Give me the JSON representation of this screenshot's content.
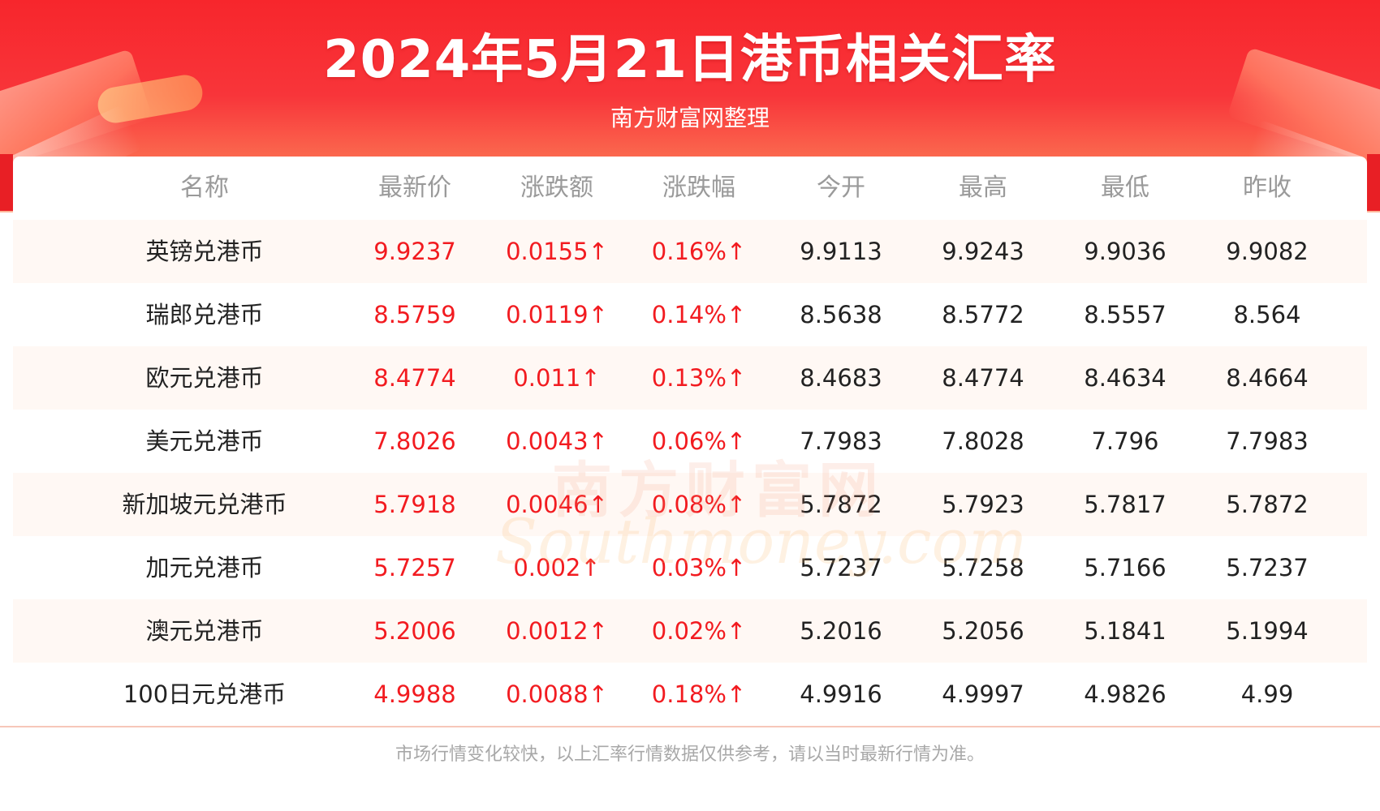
{
  "header": {
    "title": "2024年5月21日港币相关汇率",
    "subtitle": "南方财富网整理"
  },
  "table": {
    "columns": [
      "名称",
      "最新价",
      "涨跌额",
      "涨跌幅",
      "今开",
      "最高",
      "最低",
      "昨收"
    ],
    "rows": [
      [
        "英镑兑港币",
        "9.9237",
        "0.0155↑",
        "0.16%↑",
        "9.9113",
        "9.9243",
        "9.9036",
        "9.9082"
      ],
      [
        "瑞郎兑港币",
        "8.5759",
        "0.0119↑",
        "0.14%↑",
        "8.5638",
        "8.5772",
        "8.5557",
        "8.564"
      ],
      [
        "欧元兑港币",
        "8.4774",
        "0.011↑",
        "0.13%↑",
        "8.4683",
        "8.4774",
        "8.4634",
        "8.4664"
      ],
      [
        "美元兑港币",
        "7.8026",
        "0.0043↑",
        "0.06%↑",
        "7.7983",
        "7.8028",
        "7.796",
        "7.7983"
      ],
      [
        "新加坡元兑港币",
        "5.7918",
        "0.0046↑",
        "0.08%↑",
        "5.7872",
        "5.7923",
        "5.7817",
        "5.7872"
      ],
      [
        "加元兑港币",
        "5.7257",
        "0.002↑",
        "0.03%↑",
        "5.7237",
        "5.7258",
        "5.7166",
        "5.7237"
      ],
      [
        "澳元兑港币",
        "5.2006",
        "0.0012↑",
        "0.02%↑",
        "5.2016",
        "5.2056",
        "5.1841",
        "5.1994"
      ],
      [
        "100日元兑港币",
        "4.9988",
        "0.0088↑",
        "0.18%↑",
        "4.9916",
        "4.9997",
        "4.9826",
        "4.99"
      ]
    ]
  },
  "watermark": {
    "cn": "南方财富网",
    "en": "Southmoney.com"
  },
  "footer": {
    "note": "市场行情变化较快，以上汇率行情数据仅供参考，请以当时最新行情为准。"
  },
  "colors": {
    "accent_red": "#f21b20",
    "header_red": "#f7262c",
    "row_alt": "#fff8f4",
    "header_text_gray": "#9a9a9a"
  }
}
